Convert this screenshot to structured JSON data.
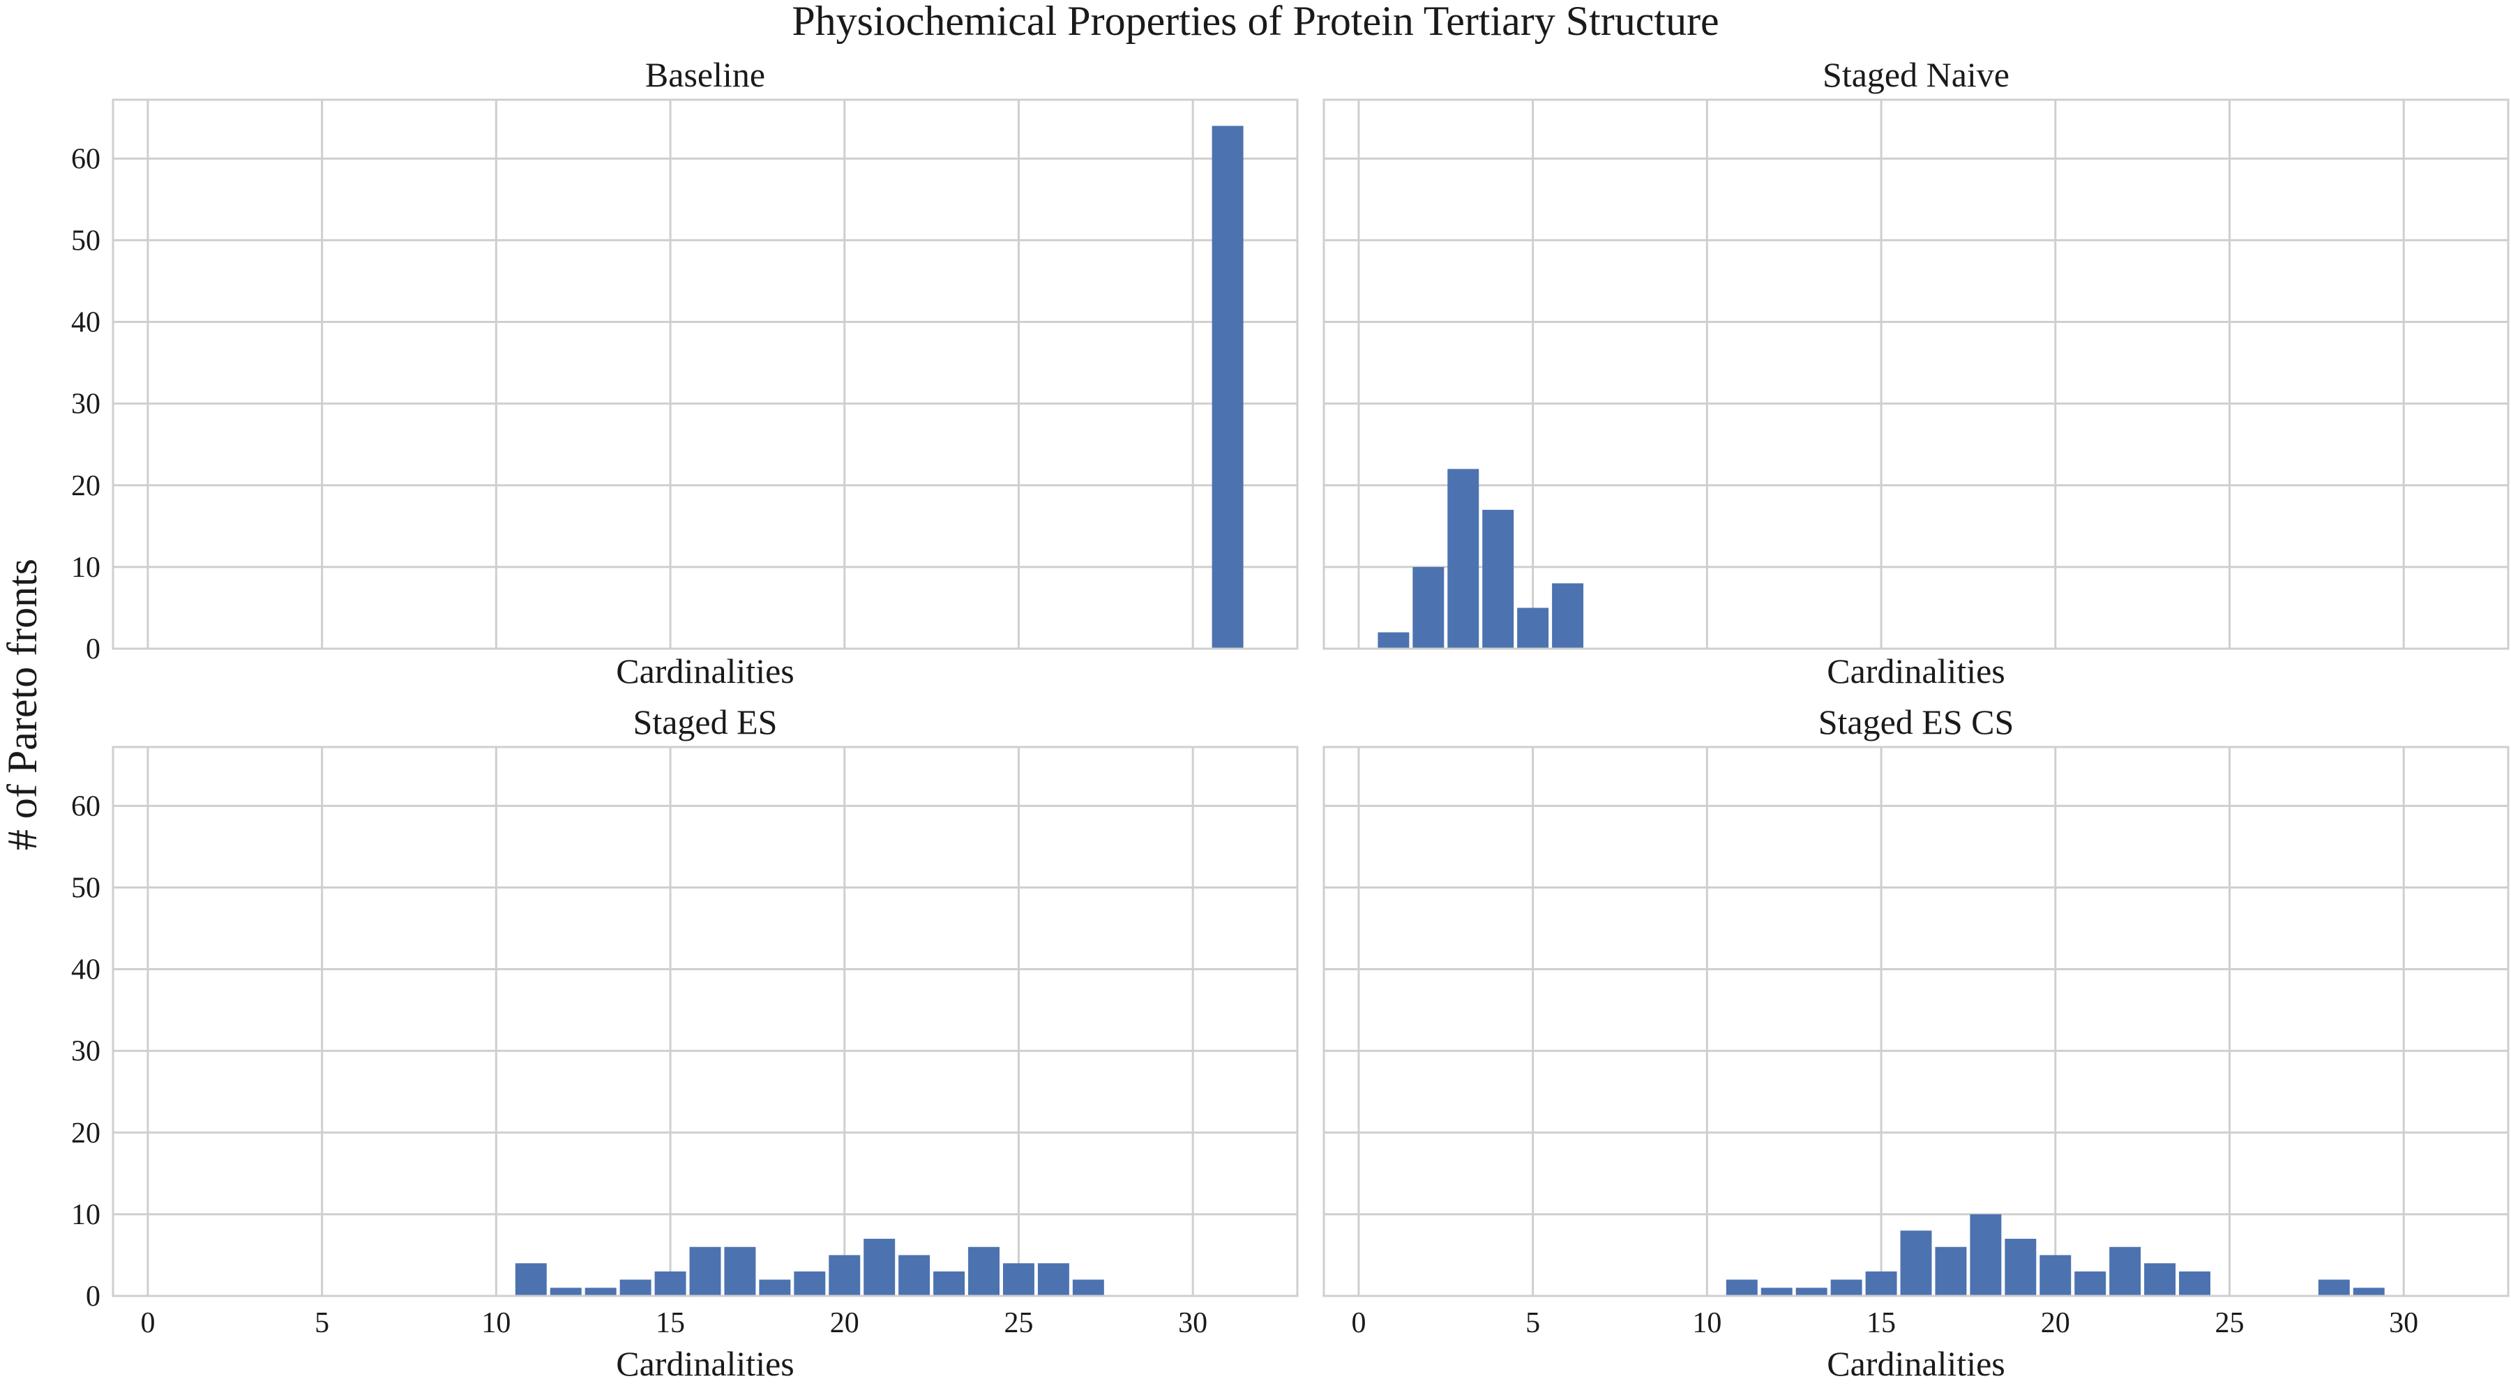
{
  "chart_data": {
    "type": "bar",
    "title": "Physiochemical Properties of Protein Tertiary Structure",
    "ylabel": "# of Pareto fronts",
    "xlabel": "Cardinalities",
    "xlim": [
      -1,
      33
    ],
    "ylim": [
      0,
      67.2
    ],
    "xticks": [
      0,
      5,
      10,
      15,
      20,
      25,
      30
    ],
    "yticks": [
      0,
      10,
      20,
      30,
      40,
      50,
      60
    ],
    "grid": true,
    "bar_color": "#4c72b0",
    "panels": [
      {
        "title": "Baseline",
        "xlabel": "Cardinalities",
        "x": [
          31
        ],
        "values": [
          64
        ]
      },
      {
        "title": "Staged Naive",
        "xlabel": "Cardinalities",
        "x": [
          1,
          2,
          3,
          4,
          5,
          6
        ],
        "values": [
          2,
          10,
          22,
          17,
          5,
          8
        ]
      },
      {
        "title": "Staged ES",
        "xlabel": "Cardinalities",
        "x": [
          11,
          12,
          13,
          14,
          15,
          16,
          17,
          18,
          19,
          20,
          21,
          22,
          23,
          24,
          25,
          26,
          27
        ],
        "values": [
          4,
          1,
          1,
          2,
          3,
          6,
          6,
          2,
          3,
          5,
          7,
          5,
          3,
          6,
          4,
          4,
          2
        ]
      },
      {
        "title": "Staged ES CS",
        "xlabel": "Cardinalities",
        "x": [
          11,
          12,
          13,
          14,
          15,
          16,
          17,
          18,
          19,
          20,
          21,
          22,
          23,
          24,
          28,
          29
        ],
        "values": [
          2,
          1,
          1,
          2,
          3,
          8,
          6,
          10,
          7,
          5,
          3,
          6,
          4,
          3,
          2,
          1
        ]
      }
    ]
  }
}
